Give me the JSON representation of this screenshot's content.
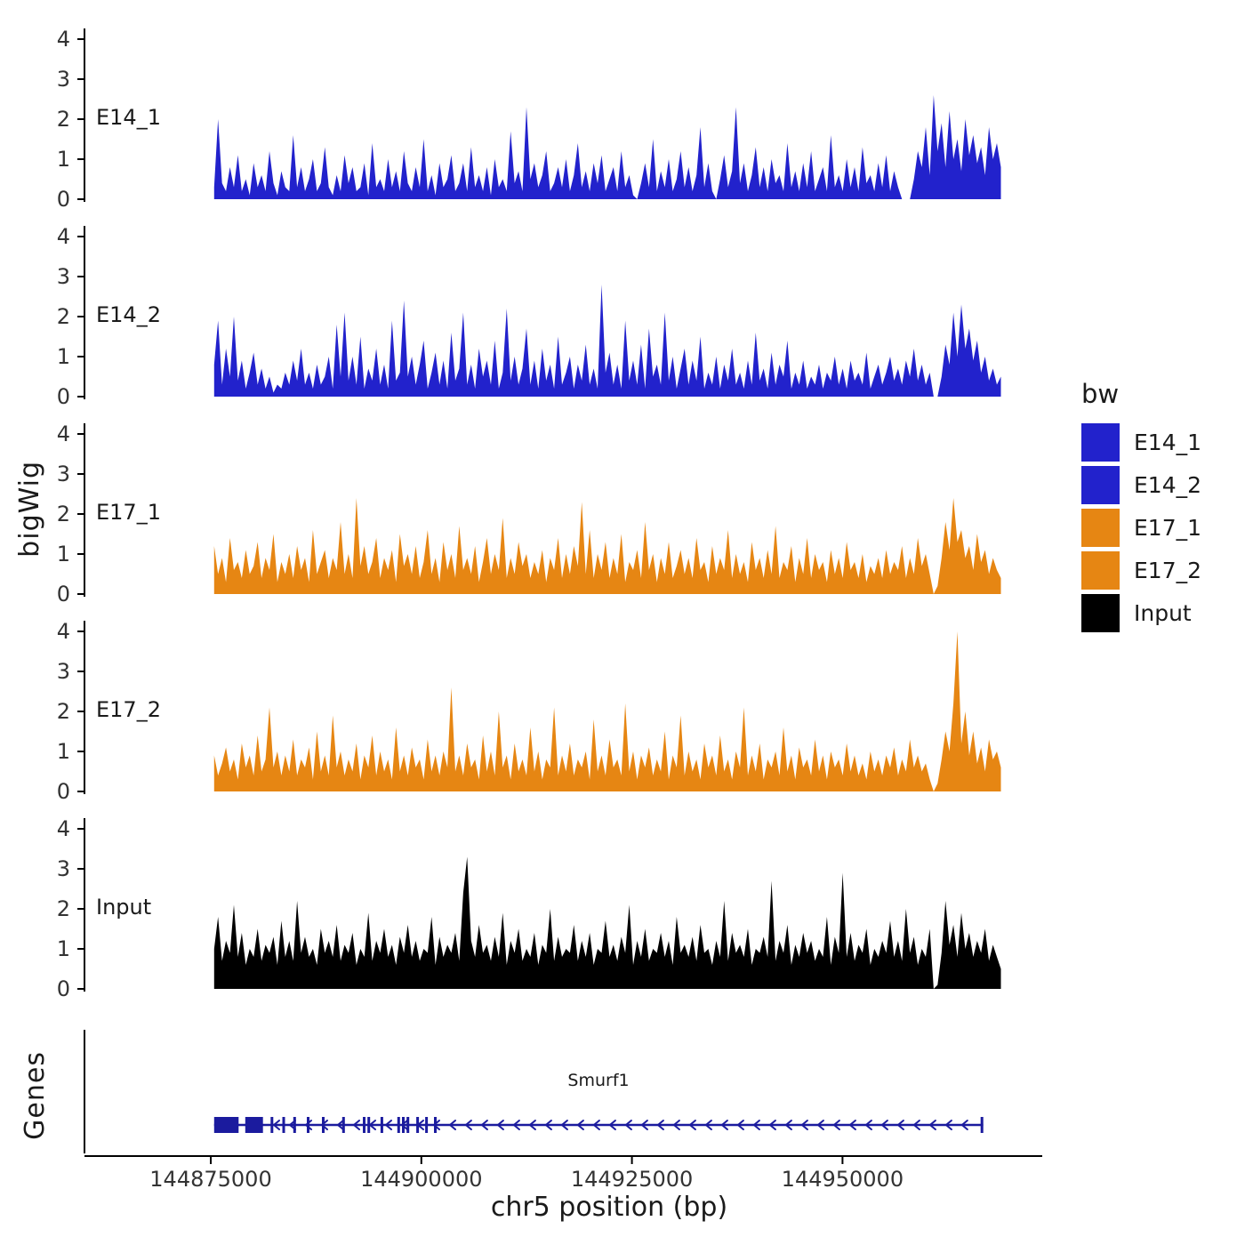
{
  "figure": {
    "y_axis_title": "bigWig",
    "genes_panel_title": "Genes",
    "background": "#FFFFFF",
    "axis_color": "#000000",
    "tick_text_color": "#333333",
    "gene": {
      "name": "Smurf1",
      "strand": "-",
      "color": "#1B1B9E",
      "start_bp": 144875400,
      "end_bp": 144966700,
      "arrow_start_bp": 144882600,
      "arrow_end_bp": 144965800,
      "arrow_spacing_bp": 1900,
      "exons_bp": [
        [
          144875400,
          144878300
        ],
        [
          144879100,
          144881200
        ],
        [
          144882100,
          144882400
        ],
        [
          144883500,
          144883800
        ],
        [
          144884800,
          144885050
        ],
        [
          144886400,
          144886650
        ],
        [
          144888200,
          144888450
        ],
        [
          144890600,
          144890850
        ],
        [
          144893050,
          144893300
        ],
        [
          144893600,
          144893850
        ],
        [
          144895150,
          144895400
        ],
        [
          144897150,
          144897400
        ],
        [
          144897700,
          144897950
        ],
        [
          144898250,
          144898500
        ],
        [
          144899400,
          144899650
        ],
        [
          144900450,
          144900700
        ],
        [
          144901500,
          144901750
        ],
        [
          144966400,
          144966700
        ]
      ]
    }
  },
  "legend": {
    "title": "bw",
    "items": [
      {
        "label": "E14_1",
        "color": "#2222CC"
      },
      {
        "label": "E14_2",
        "color": "#2222CC"
      },
      {
        "label": "E17_1",
        "color": "#E68613"
      },
      {
        "label": "E17_2",
        "color": "#E68613"
      },
      {
        "label": "Input",
        "color": "#000000"
      }
    ]
  },
  "chart_data": {
    "type": "area",
    "title": "",
    "xlabel": "chr5 position (bp)",
    "ylabel": "bigWig",
    "x_range_bp": [
      144875400,
      144968800
    ],
    "x_ticks_bp": [
      144875000,
      144900000,
      144925000,
      144950000
    ],
    "x_tick_labels": [
      "144875000",
      "144900000",
      "144925000",
      "144950000"
    ],
    "y_ticks": [
      0,
      1,
      2,
      3,
      4
    ],
    "ylim": [
      0,
      4.3
    ],
    "grid": false,
    "legend_position": "right",
    "tracks": [
      {
        "name": "E14_1",
        "color": "#2222CC",
        "values": [
          0.3,
          2.0,
          0.4,
          0.2,
          0.8,
          0.3,
          1.1,
          0.2,
          0.5,
          0.1,
          0.9,
          0.3,
          0.6,
          0.2,
          1.2,
          0.4,
          0.1,
          0.7,
          0.3,
          0.2,
          1.6,
          0.3,
          0.8,
          0.2,
          0.5,
          1.0,
          0.2,
          0.4,
          1.3,
          0.3,
          0.1,
          0.6,
          0.2,
          1.1,
          0.4,
          0.8,
          0.2,
          0.3,
          0.9,
          0.1,
          1.4,
          0.3,
          0.5,
          0.2,
          1.0,
          0.3,
          0.7,
          0.2,
          1.2,
          0.4,
          0.2,
          0.8,
          0.3,
          1.5,
          0.2,
          0.6,
          0.1,
          0.9,
          0.3,
          0.5,
          1.1,
          0.2,
          0.4,
          0.9,
          0.2,
          1.3,
          0.3,
          0.6,
          0.2,
          0.8,
          0.1,
          1.0,
          0.3,
          0.5,
          0.2,
          1.7,
          0.4,
          0.7,
          0.2,
          2.3,
          0.5,
          0.9,
          0.3,
          0.6,
          1.2,
          0.2,
          0.4,
          0.8,
          0.3,
          1.0,
          0.2,
          0.6,
          1.4,
          0.3,
          0.7,
          0.2,
          0.9,
          0.4,
          1.1,
          0.2,
          0.5,
          0.8,
          0.2,
          1.2,
          0.3,
          0.6,
          0.1,
          0.0,
          0.4,
          0.9,
          0.3,
          1.5,
          0.2,
          0.7,
          0.3,
          1.0,
          0.2,
          0.5,
          1.2,
          0.3,
          0.8,
          0.2,
          0.6,
          1.8,
          0.3,
          0.9,
          0.2,
          0.0,
          0.5,
          1.1,
          0.3,
          0.7,
          2.3,
          0.4,
          0.9,
          0.2,
          0.6,
          1.3,
          0.3,
          0.8,
          0.2,
          1.0,
          0.4,
          0.6,
          0.2,
          1.4,
          0.3,
          0.7,
          0.2,
          0.9,
          0.3,
          1.2,
          0.2,
          0.5,
          0.8,
          0.2,
          1.6,
          0.3,
          0.6,
          0.2,
          1.0,
          0.3,
          0.8,
          0.2,
          1.3,
          0.4,
          0.6,
          0.2,
          0.9,
          0.3,
          1.1,
          0.2,
          0.7,
          0.3,
          0.0,
          0.0,
          0.0,
          0.5,
          1.2,
          0.8,
          1.8,
          0.6,
          2.6,
          1.2,
          1.9,
          0.8,
          2.2,
          1.0,
          1.5,
          0.7,
          2.0,
          1.1,
          1.6,
          0.9,
          1.3,
          0.6,
          1.8,
          1.0,
          1.4,
          0.8
        ]
      },
      {
        "name": "E14_2",
        "color": "#2222CC",
        "values": [
          0.8,
          1.9,
          0.3,
          1.2,
          0.5,
          2.0,
          0.4,
          0.9,
          0.2,
          0.6,
          1.1,
          0.3,
          0.7,
          0.2,
          0.5,
          0.1,
          0.3,
          0.2,
          0.6,
          0.3,
          0.9,
          0.4,
          1.2,
          0.3,
          0.6,
          0.2,
          0.8,
          0.3,
          0.5,
          1.0,
          0.2,
          1.8,
          0.5,
          2.1,
          0.4,
          1.0,
          0.3,
          1.5,
          0.2,
          0.7,
          0.4,
          1.2,
          0.3,
          0.8,
          0.2,
          1.9,
          0.4,
          0.6,
          2.4,
          0.5,
          1.0,
          0.3,
          0.8,
          1.4,
          0.2,
          0.6,
          1.1,
          0.3,
          0.9,
          0.2,
          1.6,
          0.4,
          0.7,
          2.1,
          0.3,
          0.8,
          0.2,
          1.2,
          0.5,
          0.9,
          0.3,
          1.4,
          0.2,
          0.6,
          2.2,
          0.4,
          1.0,
          0.3,
          0.7,
          1.7,
          0.3,
          0.9,
          0.2,
          1.2,
          0.4,
          0.8,
          0.2,
          1.5,
          0.3,
          0.6,
          1.0,
          0.2,
          0.8,
          0.4,
          1.3,
          0.3,
          0.7,
          0.2,
          2.8,
          0.6,
          1.1,
          0.3,
          0.8,
          0.2,
          1.9,
          0.4,
          0.9,
          0.3,
          1.3,
          0.2,
          1.7,
          0.5,
          0.8,
          0.3,
          2.1,
          0.4,
          1.0,
          0.2,
          0.7,
          1.2,
          0.3,
          0.9,
          0.4,
          1.5,
          0.2,
          0.6,
          0.3,
          1.0,
          0.2,
          0.8,
          0.4,
          1.2,
          0.3,
          0.6,
          0.2,
          0.9,
          0.3,
          1.6,
          0.4,
          0.7,
          0.2,
          1.1,
          0.3,
          0.8,
          0.5,
          1.4,
          0.2,
          0.6,
          0.3,
          0.9,
          0.2,
          0.5,
          0.3,
          0.8,
          0.2,
          0.6,
          0.4,
          1.0,
          0.3,
          0.7,
          0.2,
          0.9,
          0.4,
          0.6,
          0.3,
          1.1,
          0.2,
          0.5,
          0.8,
          0.3,
          0.6,
          1.0,
          0.4,
          0.7,
          0.3,
          0.9,
          0.5,
          1.2,
          0.4,
          0.8,
          0.3,
          0.6,
          0.0,
          0.0,
          0.5,
          1.3,
          0.8,
          2.1,
          1.0,
          2.3,
          1.2,
          1.7,
          0.9,
          1.4,
          0.6,
          1.0,
          0.4,
          0.7,
          0.3,
          0.5
        ]
      },
      {
        "name": "E17_1",
        "color": "#E68613",
        "values": [
          1.2,
          0.5,
          0.9,
          0.3,
          1.4,
          0.6,
          0.8,
          0.4,
          1.1,
          0.5,
          0.7,
          1.3,
          0.4,
          0.9,
          0.6,
          1.5,
          0.3,
          0.8,
          0.5,
          1.0,
          0.4,
          1.2,
          0.6,
          0.9,
          0.3,
          1.6,
          0.5,
          0.8,
          1.1,
          0.4,
          0.9,
          0.6,
          1.8,
          0.5,
          1.0,
          0.4,
          2.4,
          0.7,
          1.2,
          0.5,
          0.8,
          1.4,
          0.4,
          0.9,
          0.6,
          1.1,
          0.3,
          1.5,
          0.7,
          1.0,
          0.5,
          1.2,
          0.4,
          0.8,
          1.6,
          0.5,
          0.9,
          0.3,
          1.3,
          0.6,
          1.0,
          0.4,
          1.7,
          0.6,
          0.9,
          0.5,
          1.2,
          0.3,
          0.8,
          1.4,
          0.5,
          1.0,
          0.6,
          1.9,
          0.4,
          0.9,
          0.5,
          1.3,
          0.7,
          1.0,
          0.4,
          0.8,
          0.5,
          1.1,
          0.3,
          0.9,
          0.6,
          1.4,
          0.4,
          1.0,
          0.5,
          1.2,
          0.7,
          2.3,
          0.5,
          1.6,
          0.4,
          1.0,
          0.6,
          1.3,
          0.4,
          0.9,
          0.5,
          1.5,
          0.3,
          0.8,
          0.6,
          1.1,
          0.4,
          1.8,
          0.6,
          1.0,
          0.3,
          0.9,
          0.5,
          1.3,
          0.4,
          0.7,
          1.1,
          0.5,
          0.9,
          0.4,
          1.4,
          0.6,
          0.8,
          0.3,
          1.2,
          0.5,
          0.9,
          0.6,
          1.6,
          0.4,
          1.0,
          0.5,
          0.8,
          0.3,
          1.3,
          0.6,
          0.9,
          0.4,
          1.1,
          0.5,
          1.7,
          0.4,
          0.8,
          0.6,
          1.2,
          0.3,
          0.9,
          0.5,
          1.4,
          0.4,
          1.0,
          0.6,
          0.8,
          0.3,
          1.1,
          0.5,
          0.9,
          0.4,
          1.3,
          0.6,
          0.8,
          0.4,
          1.0,
          0.3,
          0.7,
          0.5,
          0.9,
          0.4,
          1.1,
          0.5,
          0.8,
          0.6,
          1.2,
          0.4,
          0.9,
          0.5,
          1.4,
          0.7,
          1.0,
          0.5,
          0.0,
          0.2,
          0.9,
          1.8,
          1.1,
          2.4,
          1.3,
          1.6,
          0.9,
          1.2,
          0.6,
          1.5,
          0.8,
          1.1,
          0.5,
          0.9,
          0.6,
          0.4
        ]
      },
      {
        "name": "E17_2",
        "color": "#E68613",
        "values": [
          0.9,
          0.4,
          0.7,
          1.1,
          0.5,
          0.8,
          0.3,
          1.2,
          0.6,
          0.9,
          0.4,
          1.4,
          0.5,
          0.8,
          2.1,
          0.6,
          1.0,
          0.4,
          0.9,
          0.5,
          1.3,
          0.4,
          0.8,
          0.6,
          1.1,
          0.3,
          1.5,
          0.5,
          0.9,
          0.4,
          1.9,
          0.6,
          1.0,
          0.4,
          0.8,
          0.5,
          1.2,
          0.3,
          0.9,
          0.6,
          1.4,
          0.4,
          1.0,
          0.5,
          0.8,
          0.3,
          1.6,
          0.5,
          0.9,
          0.4,
          1.1,
          0.6,
          0.8,
          0.3,
          1.3,
          0.5,
          0.9,
          0.4,
          1.0,
          0.6,
          2.6,
          0.5,
          0.9,
          0.4,
          1.2,
          0.6,
          0.8,
          0.3,
          1.4,
          0.5,
          1.0,
          0.4,
          2.0,
          0.6,
          0.9,
          0.3,
          1.2,
          0.5,
          0.8,
          0.4,
          1.6,
          0.5,
          1.0,
          0.3,
          0.8,
          0.6,
          2.1,
          0.4,
          0.9,
          0.5,
          1.2,
          0.4,
          0.8,
          0.6,
          1.0,
          0.3,
          1.8,
          0.5,
          0.9,
          0.4,
          1.3,
          0.6,
          0.8,
          0.4,
          2.2,
          0.5,
          1.0,
          0.3,
          0.9,
          0.6,
          1.1,
          0.4,
          0.8,
          0.5,
          1.5,
          0.3,
          0.9,
          0.6,
          1.9,
          0.4,
          1.0,
          0.5,
          0.8,
          0.3,
          1.2,
          0.6,
          0.9,
          0.4,
          1.4,
          0.5,
          0.8,
          0.3,
          1.0,
          0.6,
          2.1,
          0.4,
          0.9,
          0.5,
          1.2,
          0.3,
          0.8,
          0.6,
          1.0,
          0.4,
          1.6,
          0.5,
          0.9,
          0.3,
          1.1,
          0.6,
          0.8,
          0.4,
          1.3,
          0.5,
          0.9,
          0.3,
          1.0,
          0.6,
          0.8,
          0.4,
          1.2,
          0.5,
          0.9,
          0.4,
          0.7,
          0.3,
          1.0,
          0.5,
          0.8,
          0.4,
          0.9,
          0.6,
          1.1,
          0.4,
          0.8,
          0.5,
          1.3,
          0.6,
          0.9,
          0.5,
          0.7,
          0.3,
          0.0,
          0.2,
          0.8,
          1.5,
          1.0,
          2.2,
          4.0,
          1.2,
          2.0,
          0.9,
          1.5,
          0.7,
          1.1,
          0.5,
          1.3,
          0.8,
          1.0,
          0.6
        ]
      },
      {
        "name": "Input",
        "color": "#000000",
        "values": [
          1.0,
          1.8,
          0.7,
          1.2,
          0.9,
          2.1,
          0.8,
          1.4,
          0.6,
          1.0,
          0.8,
          1.5,
          0.7,
          1.1,
          0.9,
          1.3,
          0.6,
          1.7,
          0.8,
          1.2,
          0.7,
          2.2,
          0.9,
          1.3,
          0.8,
          1.0,
          0.6,
          1.5,
          0.9,
          1.2,
          0.8,
          1.6,
          0.7,
          1.1,
          0.9,
          1.4,
          0.6,
          1.0,
          0.8,
          1.9,
          0.7,
          1.2,
          0.9,
          1.5,
          0.8,
          1.1,
          0.6,
          1.3,
          0.9,
          1.6,
          0.8,
          1.2,
          0.7,
          1.0,
          0.9,
          1.8,
          0.6,
          1.3,
          0.8,
          1.1,
          0.9,
          1.4,
          0.7,
          2.4,
          3.3,
          1.2,
          0.8,
          1.6,
          0.9,
          1.1,
          0.7,
          1.3,
          0.8,
          1.9,
          0.6,
          1.2,
          0.9,
          1.5,
          0.7,
          1.0,
          0.8,
          1.4,
          0.6,
          1.1,
          0.9,
          2.0,
          0.7,
          1.3,
          0.8,
          1.0,
          0.9,
          1.6,
          0.7,
          1.2,
          0.8,
          1.4,
          0.6,
          1.0,
          0.9,
          1.7,
          0.8,
          1.1,
          0.7,
          1.3,
          0.9,
          2.1,
          0.6,
          1.2,
          0.8,
          1.5,
          0.7,
          1.0,
          0.9,
          1.4,
          0.8,
          1.2,
          0.6,
          1.8,
          0.9,
          1.1,
          0.8,
          1.3,
          0.7,
          1.6,
          0.9,
          1.0,
          0.6,
          1.2,
          0.8,
          2.2,
          0.7,
          1.4,
          0.9,
          1.1,
          0.8,
          1.5,
          0.6,
          1.0,
          0.9,
          1.3,
          0.8,
          2.7,
          0.7,
          1.2,
          0.9,
          1.6,
          0.6,
          1.1,
          0.8,
          1.4,
          0.9,
          1.2,
          0.7,
          1.0,
          0.8,
          1.8,
          0.6,
          1.3,
          0.9,
          2.9,
          0.8,
          1.4,
          0.7,
          1.1,
          0.9,
          1.5,
          0.6,
          1.0,
          0.8,
          1.2,
          0.9,
          1.7,
          0.8,
          1.2,
          0.7,
          2.0,
          0.9,
          1.3,
          0.6,
          1.0,
          0.8,
          1.5,
          0.0,
          0.1,
          0.9,
          2.2,
          1.1,
          1.6,
          0.8,
          1.9,
          1.0,
          1.4,
          0.8,
          1.2,
          0.9,
          1.5,
          0.7,
          1.1,
          0.8,
          0.5
        ]
      }
    ]
  }
}
